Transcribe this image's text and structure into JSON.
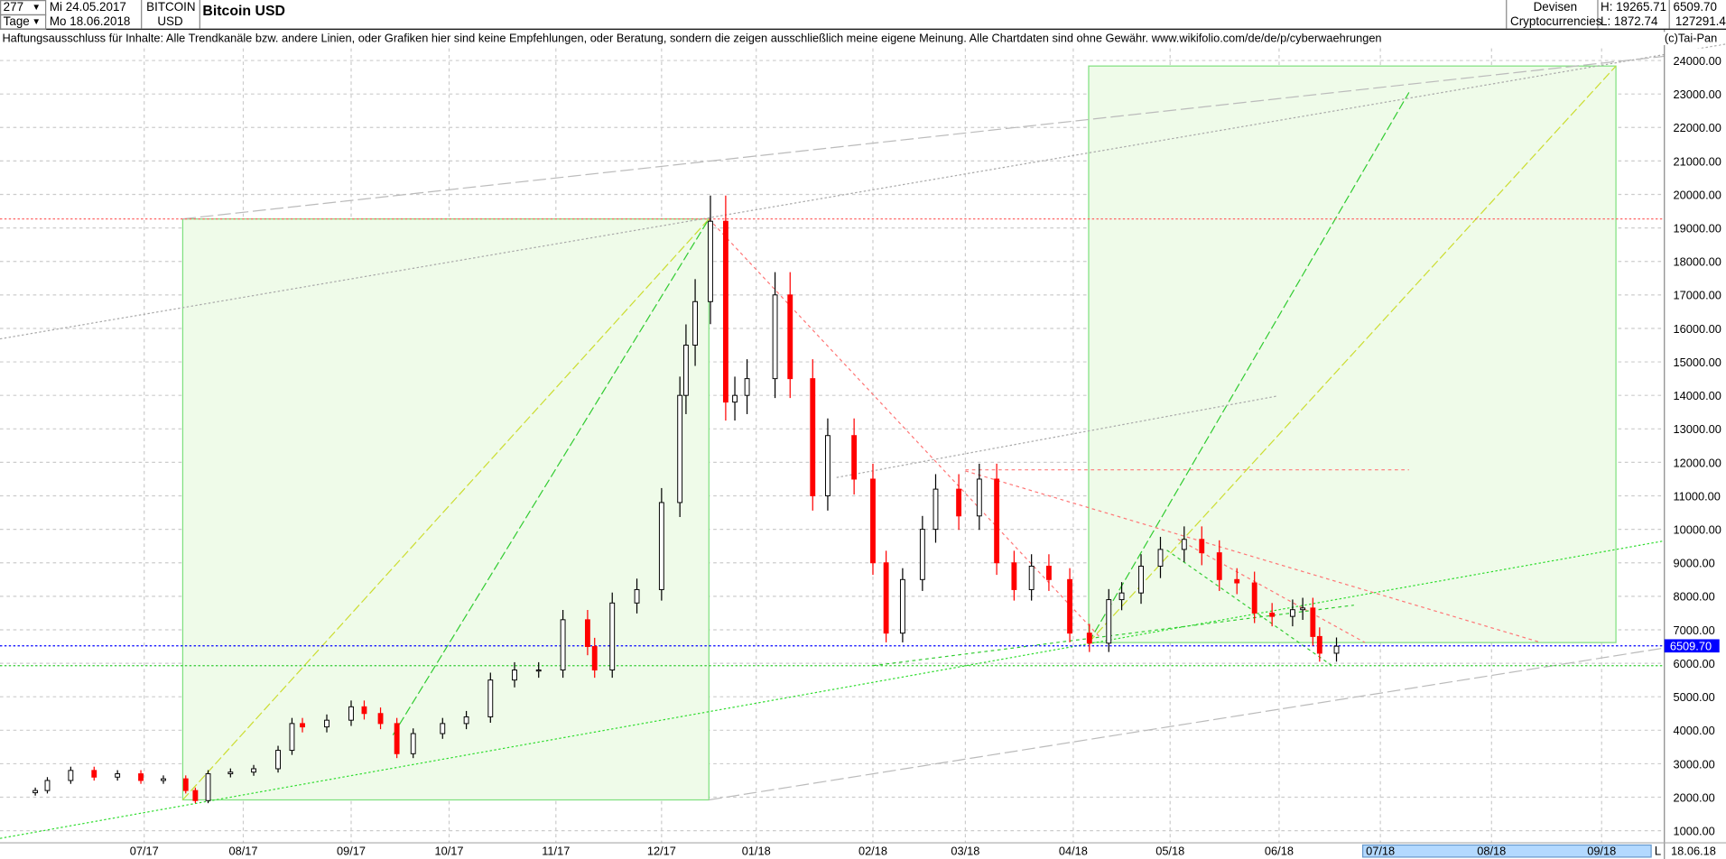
{
  "header": {
    "period_count": "277",
    "period_unit": "Tage",
    "date_from": "Mi 24.05.2017",
    "date_to": "Mo 18.06.2018",
    "symbol_line1": "BITCOIN",
    "symbol_line2": "USD",
    "title": "Bitcoin USD",
    "category_line1": "Devisen",
    "category_line2": "Cryptocurrencies",
    "high": "H: 19265.71",
    "low": "L: 1872.74",
    "last": "6509.70",
    "volume": "127291.4/",
    "copyright": "(c)Tai-Pan"
  },
  "disclaimer": "Haftungsausschluss für Inhalte: Alle Trendkanäle bzw. andere Linien, oder Grafiken hier sind keine Empfehlungen, oder Beratung, sondern die zeigen ausschließlich meine eigene Meinung. Alle Chartdaten sind ohne Gewähr.  www.wikifolio.com/de/de/p/cyberwaehrungen",
  "footer": {
    "scale_mode": "L",
    "end_date": "18.06.18"
  },
  "colors": {
    "up": "#000000",
    "down": "#ff0000",
    "box_fill": "#effbe9",
    "box_stroke": "#7fe07f",
    "last_price": "#0000ff",
    "future_band": "#b3d9ff"
  },
  "chart_data": {
    "type": "candlestick",
    "title": "Bitcoin USD",
    "ylim": [
      1000,
      24000
    ],
    "y_ticks": [
      "1000.00",
      "2000.00",
      "3000.00",
      "4000.00",
      "5000.00",
      "6000.00",
      "7000.00",
      "8000.00",
      "9000.00",
      "10000.00",
      "11000.00",
      "12000.00",
      "13000.00",
      "14000.00",
      "15000.00",
      "16000.00",
      "17000.00",
      "18000.00",
      "19000.00",
      "20000.00",
      "21000.00",
      "22000.00",
      "23000.00",
      "24000.00"
    ],
    "x_ticks": [
      "07.17",
      "08.17",
      "09.17",
      "10.17",
      "11.17",
      "12.17",
      "01.18",
      "02.18",
      "03.18",
      "04.18",
      "05.18",
      "06.18",
      "07.18",
      "08.18",
      "09.18"
    ],
    "last_price": 6509.7,
    "high_line": 19265.71,
    "support_line": 5900,
    "grid": true,
    "series": [
      [
        "2017-05-26",
        2200
      ],
      [
        "2017-06-02",
        2500
      ],
      [
        "2017-06-09",
        2800
      ],
      [
        "2017-06-16",
        2600
      ],
      [
        "2017-06-23",
        2700
      ],
      [
        "2017-06-30",
        2500
      ],
      [
        "2017-07-07",
        2550
      ],
      [
        "2017-07-14",
        2200
      ],
      [
        "2017-07-17",
        1900
      ],
      [
        "2017-07-21",
        2700
      ],
      [
        "2017-07-28",
        2750
      ],
      [
        "2017-08-04",
        2850
      ],
      [
        "2017-08-11",
        3400
      ],
      [
        "2017-08-15",
        4200
      ],
      [
        "2017-08-18",
        4100
      ],
      [
        "2017-08-25",
        4300
      ],
      [
        "2017-09-01",
        4700
      ],
      [
        "2017-09-05",
        4500
      ],
      [
        "2017-09-10",
        4200
      ],
      [
        "2017-09-15",
        3300
      ],
      [
        "2017-09-20",
        3900
      ],
      [
        "2017-09-29",
        4200
      ],
      [
        "2017-10-06",
        4400
      ],
      [
        "2017-10-13",
        5500
      ],
      [
        "2017-10-20",
        5800
      ],
      [
        "2017-10-27",
        5800
      ],
      [
        "2017-11-03",
        7300
      ],
      [
        "2017-11-10",
        6500
      ],
      [
        "2017-11-12",
        5800
      ],
      [
        "2017-11-17",
        7800
      ],
      [
        "2017-11-24",
        8200
      ],
      [
        "2017-12-01",
        10800
      ],
      [
        "2017-12-07",
        14000
      ],
      [
        "2017-12-09",
        15500
      ],
      [
        "2017-12-12",
        16800
      ],
      [
        "2017-12-17",
        19200
      ],
      [
        "2017-12-22",
        13800
      ],
      [
        "2017-12-25",
        14000
      ],
      [
        "2017-12-29",
        14500
      ],
      [
        "2018-01-06",
        17000
      ],
      [
        "2018-01-10",
        14500
      ],
      [
        "2018-01-16",
        11000
      ],
      [
        "2018-01-20",
        12800
      ],
      [
        "2018-01-27",
        11500
      ],
      [
        "2018-02-01",
        9000
      ],
      [
        "2018-02-05",
        6900
      ],
      [
        "2018-02-10",
        8500
      ],
      [
        "2018-02-16",
        10000
      ],
      [
        "2018-02-20",
        11200
      ],
      [
        "2018-02-27",
        10400
      ],
      [
        "2018-03-05",
        11500
      ],
      [
        "2018-03-10",
        9000
      ],
      [
        "2018-03-15",
        8200
      ],
      [
        "2018-03-20",
        8900
      ],
      [
        "2018-03-25",
        8500
      ],
      [
        "2018-03-31",
        6900
      ],
      [
        "2018-04-06",
        6600
      ],
      [
        "2018-04-12",
        7900
      ],
      [
        "2018-04-16",
        8100
      ],
      [
        "2018-04-22",
        8900
      ],
      [
        "2018-04-28",
        9400
      ],
      [
        "2018-05-05",
        9700
      ],
      [
        "2018-05-10",
        9300
      ],
      [
        "2018-05-15",
        8500
      ],
      [
        "2018-05-20",
        8400
      ],
      [
        "2018-05-25",
        7500
      ],
      [
        "2018-05-30",
        7400
      ],
      [
        "2018-06-05",
        7600
      ],
      [
        "2018-06-08",
        7650
      ],
      [
        "2018-06-11",
        6800
      ],
      [
        "2018-06-13",
        6300
      ],
      [
        "2018-06-18",
        6510
      ]
    ]
  }
}
